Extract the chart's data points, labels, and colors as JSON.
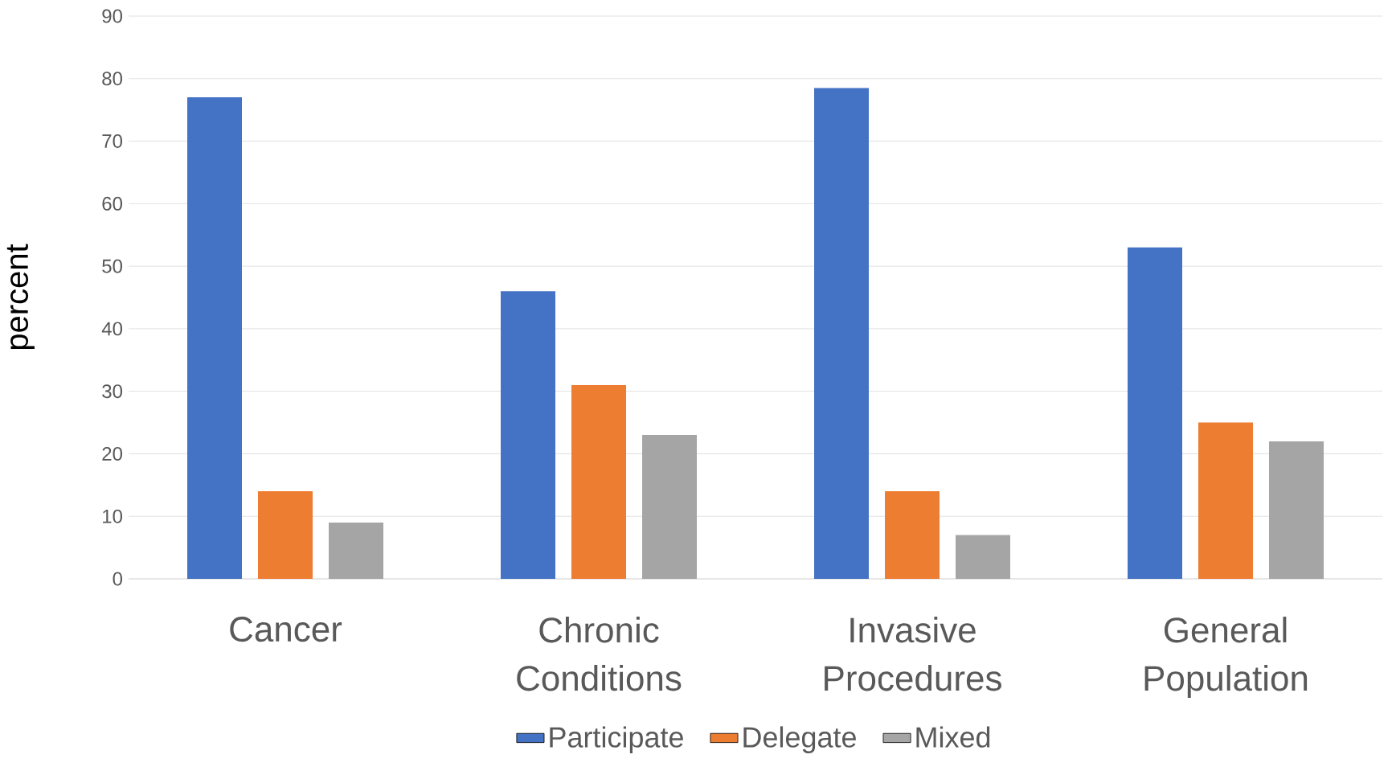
{
  "chart_data": {
    "type": "bar",
    "ylabel": "percent",
    "categories": [
      "Cancer",
      "Chronic Conditions",
      "Invasive Procedures",
      "General Population"
    ],
    "series": [
      {
        "name": "Participate",
        "color": "#4472c4",
        "values": [
          77,
          46,
          78.5,
          53
        ]
      },
      {
        "name": "Delegate",
        "color": "#ed7d31",
        "values": [
          14,
          31,
          14,
          25
        ]
      },
      {
        "name": "Mixed",
        "color": "#a5a5a5",
        "values": [
          9,
          23,
          7,
          22
        ]
      }
    ],
    "ylim": [
      0,
      90
    ],
    "yticks": [
      0,
      10,
      20,
      30,
      40,
      50,
      60,
      70,
      80,
      90
    ],
    "grid": "y",
    "legend": "bottom"
  }
}
